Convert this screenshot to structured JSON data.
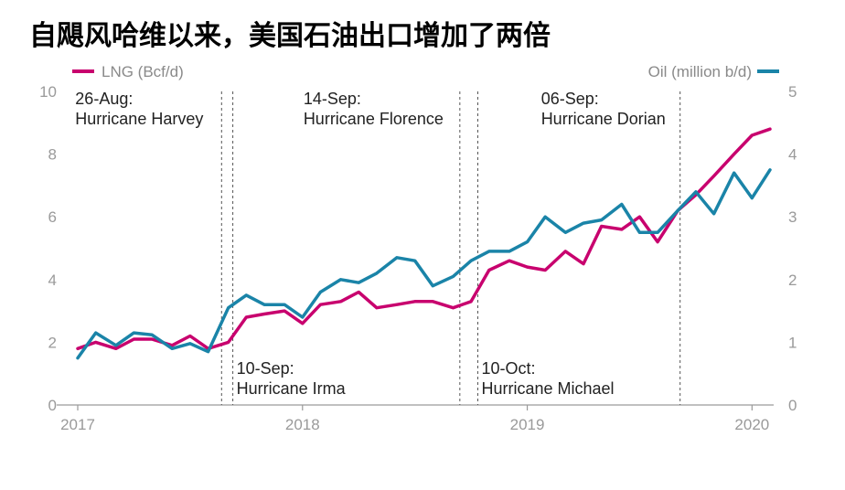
{
  "title": "自飓风哈维以来，美国石油出口增加了两倍",
  "colors": {
    "lng": "#c8006e",
    "oil": "#1a84a8",
    "axis": "#9a9a9a",
    "vline": "#555555"
  },
  "legend": {
    "lng": "LNG (Bcf/d)",
    "oil": "Oil (million b/d)"
  },
  "chart_data": {
    "type": "line",
    "x_ticks": [
      "2017",
      "2018",
      "2019",
      "2020"
    ],
    "y_left": {
      "range": [
        0,
        10
      ],
      "ticks": [
        "0",
        "2",
        "4",
        "6",
        "8",
        "10"
      ]
    },
    "y_right": {
      "range": [
        0,
        5
      ],
      "ticks": [
        "0",
        "1",
        "2",
        "3",
        "4",
        "5"
      ]
    },
    "series": [
      {
        "name": "LNG (Bcf/d)",
        "axis": "left",
        "color": "#c8006e",
        "x": [
          2017.0,
          2017.08,
          2017.17,
          2017.25,
          2017.33,
          2017.42,
          2017.5,
          2017.58,
          2017.67,
          2017.75,
          2017.83,
          2017.92,
          2018.0,
          2018.08,
          2018.17,
          2018.25,
          2018.33,
          2018.42,
          2018.5,
          2018.58,
          2018.67,
          2018.75,
          2018.83,
          2018.92,
          2019.0,
          2019.08,
          2019.17,
          2019.25,
          2019.33,
          2019.42,
          2019.5,
          2019.58,
          2019.67,
          2019.75,
          2019.83,
          2019.92,
          2020.0,
          2020.08
        ],
        "values": [
          1.8,
          2.0,
          1.8,
          2.1,
          2.1,
          1.9,
          2.2,
          1.8,
          2.0,
          2.8,
          2.9,
          3.0,
          2.6,
          3.2,
          3.3,
          3.6,
          3.1,
          3.2,
          3.3,
          3.3,
          3.1,
          3.3,
          4.3,
          4.6,
          4.4,
          4.3,
          4.9,
          4.5,
          5.7,
          5.6,
          6.0,
          5.2,
          6.2,
          6.7,
          7.3,
          8.0,
          8.6,
          8.8
        ]
      },
      {
        "name": "Oil (million b/d)",
        "axis": "right",
        "color": "#1a84a8",
        "x": [
          2017.0,
          2017.08,
          2017.17,
          2017.25,
          2017.33,
          2017.42,
          2017.5,
          2017.58,
          2017.67,
          2017.75,
          2017.83,
          2017.92,
          2018.0,
          2018.08,
          2018.17,
          2018.25,
          2018.33,
          2018.42,
          2018.5,
          2018.58,
          2018.67,
          2018.75,
          2018.83,
          2018.92,
          2019.0,
          2019.08,
          2019.17,
          2019.25,
          2019.33,
          2019.42,
          2019.5,
          2019.58,
          2019.67,
          2019.75,
          2019.83,
          2019.92,
          2020.0,
          2020.08
        ],
        "values": [
          0.75,
          1.15,
          0.95,
          1.15,
          1.12,
          0.9,
          0.98,
          0.85,
          1.55,
          1.75,
          1.6,
          1.6,
          1.4,
          1.8,
          2.0,
          1.95,
          2.1,
          2.35,
          2.3,
          1.9,
          2.05,
          2.3,
          2.45,
          2.45,
          2.6,
          3.0,
          2.75,
          2.9,
          2.95,
          3.2,
          2.75,
          2.75,
          3.1,
          3.4,
          3.05,
          3.7,
          3.3,
          3.75
        ]
      }
    ],
    "events": [
      {
        "x": 2017.64,
        "date": "26-Aug:",
        "name": "Hurricane Harvey",
        "label_pos": "top"
      },
      {
        "x": 2017.69,
        "date": "10-Sep:",
        "name": "Hurricane Irma",
        "label_pos": "bottom"
      },
      {
        "x": 2018.7,
        "date": "14-Sep:",
        "name": "Hurricane Florence",
        "label_pos": "top"
      },
      {
        "x": 2018.78,
        "date": "10-Oct:",
        "name": "Hurricane Michael",
        "label_pos": "bottom"
      },
      {
        "x": 2019.68,
        "date": "06-Sep:",
        "name": "Hurricane Dorian",
        "label_pos": "top"
      }
    ],
    "grid": false,
    "legend_position": "top"
  }
}
